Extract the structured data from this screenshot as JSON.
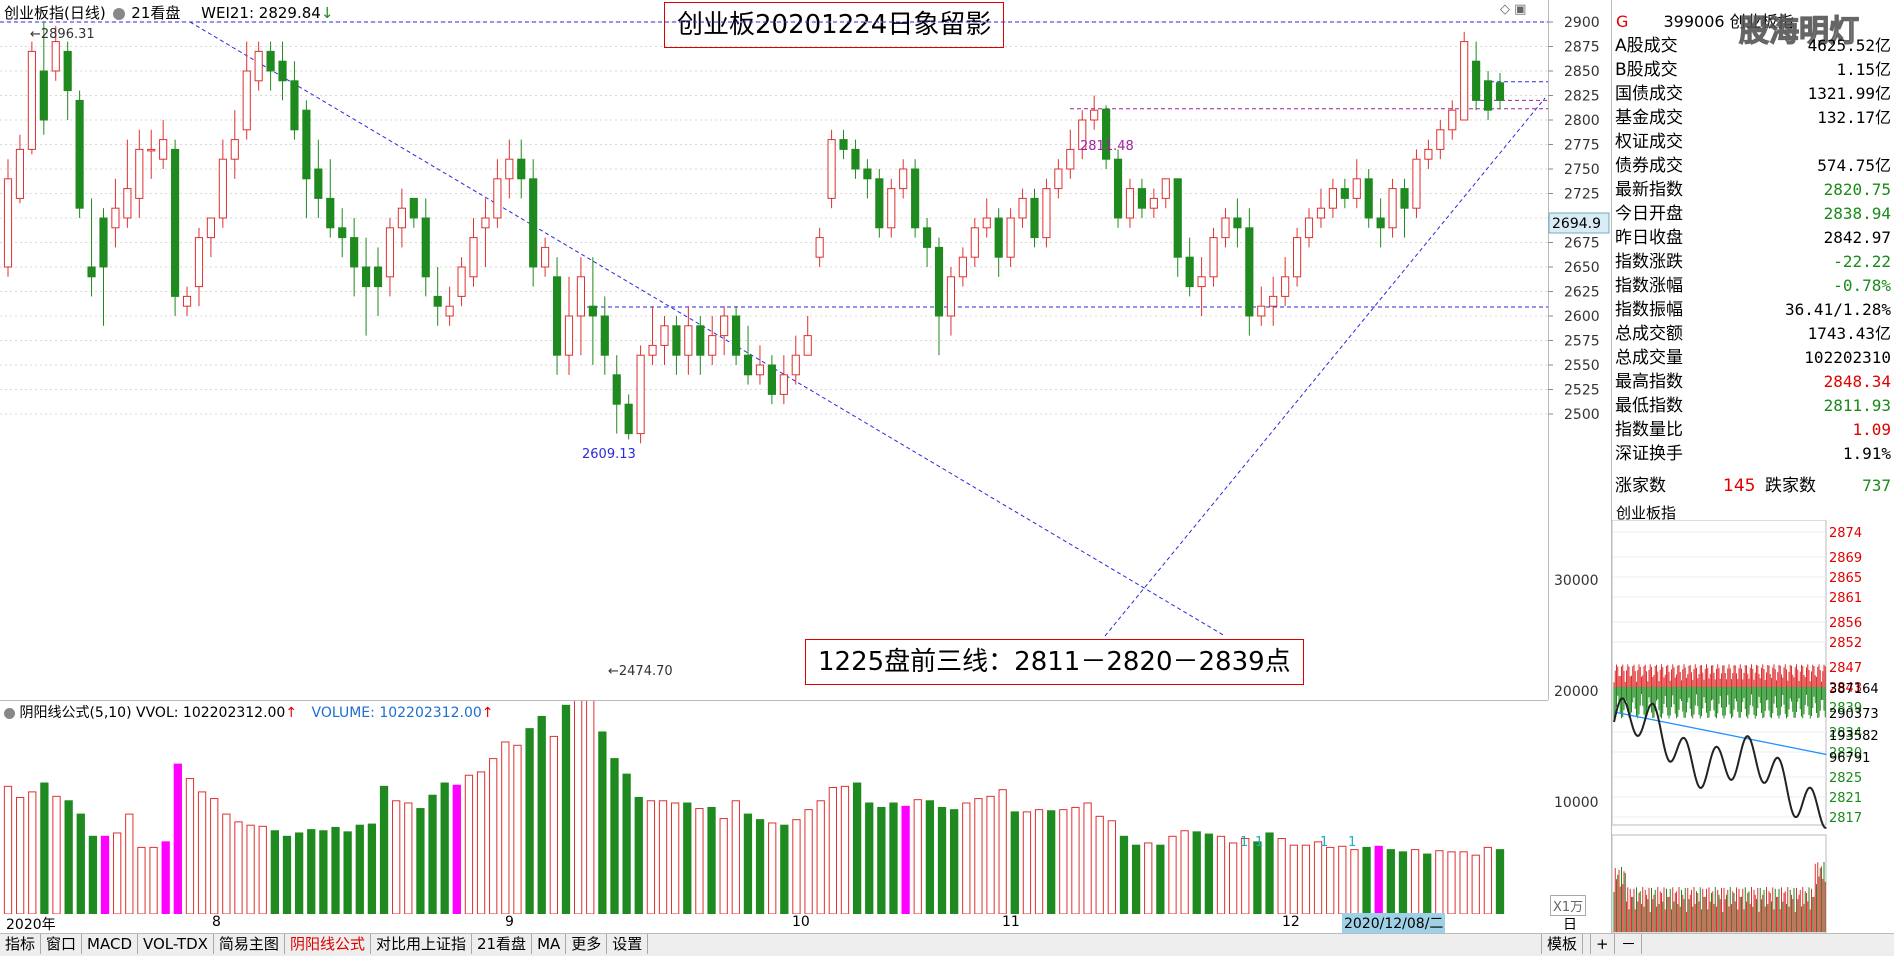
{
  "main_header": {
    "name": "创业板指(日线)",
    "period": "21看盘",
    "indicator": "WEI21: 2829.84",
    "indicator_arrow": "↓"
  },
  "title_box": "创业板20201224日象留影",
  "note_box": "1225盘前三线：2811－2820－2839点",
  "labels": {
    "high": "2896.31",
    "low": "2474.70",
    "level1": "2609.13",
    "level2": "2811.48",
    "current": "2694.9"
  },
  "vol_header": {
    "name": "阴阳线公式(5,10)",
    "vvol": "VVOL: 102202312.00",
    "volume": "VOLUME: 102202312.00",
    "arrow": "↑"
  },
  "vol_unit": "X1万",
  "date_axis": [
    "2020年",
    "8",
    "9",
    "10",
    "11",
    "12"
  ],
  "date_cursor": "2020/12/08/二",
  "date_right": "日线",
  "tabs": [
    "指标",
    "窗口",
    "MACD",
    "VOL-TDX",
    "简易主图",
    "阴阳线公式",
    "对比用上证指",
    "21看盘",
    "MA",
    "更多",
    "设置"
  ],
  "tab_right": "模板",
  "tab_plus": "+",
  "tab_minus": "－",
  "price_axis": [
    "2900",
    "2875",
    "2850",
    "2825",
    "2800",
    "2775",
    "2750",
    "2725",
    "2700",
    "2675",
    "2650",
    "2625",
    "2600",
    "2575",
    "2550",
    "2525",
    "2500"
  ],
  "vol_axis": [
    "30000",
    "20000",
    "10000"
  ],
  "cycle_marks": [
    "1",
    "1",
    "1",
    "1"
  ],
  "quote": {
    "flag": "G",
    "code": "399006",
    "name": "创业板指",
    "watermark": "股海明灯",
    "rows": [
      {
        "label": "A股成交",
        "value": "4625.52亿",
        "color": "#000000"
      },
      {
        "label": "B股成交",
        "value": "1.15亿",
        "color": "#000000"
      },
      {
        "label": "国债成交",
        "value": "1321.99亿",
        "color": "#000000"
      },
      {
        "label": "基金成交",
        "value": "132.17亿",
        "color": "#000000"
      },
      {
        "label": "权证成交",
        "value": "",
        "color": "#000000"
      },
      {
        "label": "债券成交",
        "value": "574.75亿",
        "color": "#000000"
      },
      {
        "label": "最新指数",
        "value": "2820.75",
        "color": "#1a8a1a"
      },
      {
        "label": "今日开盘",
        "value": "2838.94",
        "color": "#1a8a1a"
      },
      {
        "label": "昨日收盘",
        "value": "2842.97",
        "color": "#000000"
      },
      {
        "label": "指数涨跌",
        "value": "-22.22",
        "color": "#1a8a1a"
      },
      {
        "label": "指数涨幅",
        "value": "-0.78%",
        "color": "#1a8a1a"
      },
      {
        "label": "指数振幅",
        "value": "36.41/1.28%",
        "color": "#000000"
      },
      {
        "label": "总成交额",
        "value": "1743.43亿",
        "color": "#000000"
      },
      {
        "label": "总成交量",
        "value": "102202310",
        "color": "#000000"
      },
      {
        "label": "最高指数",
        "value": "2848.34",
        "color": "#e00000"
      },
      {
        "label": "最低指数",
        "value": "2811.93",
        "color": "#1a8a1a"
      },
      {
        "label": "指数量比",
        "value": "1.09",
        "color": "#e00000"
      },
      {
        "label": "深证换手",
        "value": "1.91%",
        "color": "#000000"
      }
    ],
    "up_label": "涨家数",
    "up_value": "145",
    "down_label": "跌家数",
    "down_value": "737"
  },
  "mini": {
    "title": "创业板指",
    "price_axis": [
      "2874",
      "2869",
      "2865",
      "2861",
      "2856",
      "2852",
      "2847",
      "2843",
      "2839",
      "2834",
      "2830",
      "2825",
      "2821",
      "2817"
    ],
    "vol_top": "387164",
    "vol_axis": [
      "290373",
      "193582",
      "96791"
    ]
  },
  "chart_data": {
    "type": "candlestick",
    "title": "创业板20201224日象留影",
    "ylim": [
      2460,
      2910
    ],
    "y_ticks": [
      2500,
      2525,
      2550,
      2575,
      2600,
      2625,
      2650,
      2675,
      2700,
      2725,
      2750,
      2775,
      2800,
      2825,
      2850,
      2875,
      2900
    ],
    "candles": [
      [
        2650,
        2740,
        2760,
        2640
      ],
      [
        2720,
        2770,
        2785,
        2715
      ],
      [
        2770,
        2870,
        2880,
        2765
      ],
      [
        2850,
        2800,
        2900,
        2785
      ],
      [
        2850,
        2880,
        2896,
        2840
      ],
      [
        2870,
        2830,
        2880,
        2800
      ],
      [
        2820,
        2710,
        2830,
        2700
      ],
      [
        2650,
        2640,
        2720,
        2620
      ],
      [
        2700,
        2650,
        2710,
        2590
      ],
      [
        2690,
        2710,
        2740,
        2670
      ],
      [
        2700,
        2730,
        2780,
        2690
      ],
      [
        2720,
        2770,
        2790,
        2700
      ],
      [
        2770,
        2770,
        2790,
        2740
      ],
      [
        2760,
        2780,
        2800,
        2750
      ],
      [
        2770,
        2620,
        2780,
        2600
      ],
      [
        2610,
        2620,
        2630,
        2600
      ],
      [
        2630,
        2680,
        2690,
        2610
      ],
      [
        2680,
        2700,
        2700,
        2660
      ],
      [
        2700,
        2760,
        2780,
        2690
      ],
      [
        2760,
        2780,
        2810,
        2740
      ],
      [
        2790,
        2850,
        2880,
        2780
      ],
      [
        2840,
        2870,
        2880,
        2830
      ],
      [
        2870,
        2850,
        2880,
        2830
      ],
      [
        2860,
        2840,
        2880,
        2820
      ],
      [
        2840,
        2790,
        2860,
        2780
      ],
      [
        2810,
        2740,
        2820,
        2700
      ],
      [
        2750,
        2720,
        2780,
        2700
      ],
      [
        2720,
        2690,
        2760,
        2680
      ],
      [
        2690,
        2680,
        2710,
        2660
      ],
      [
        2680,
        2650,
        2700,
        2620
      ],
      [
        2650,
        2630,
        2680,
        2580
      ],
      [
        2650,
        2630,
        2670,
        2600
      ],
      [
        2640,
        2690,
        2700,
        2620
      ],
      [
        2690,
        2710,
        2730,
        2670
      ],
      [
        2720,
        2700,
        2720,
        2690
      ],
      [
        2700,
        2640,
        2720,
        2620
      ],
      [
        2620,
        2610,
        2650,
        2590
      ],
      [
        2600,
        2610,
        2630,
        2590
      ],
      [
        2620,
        2650,
        2660,
        2610
      ],
      [
        2640,
        2680,
        2700,
        2630
      ],
      [
        2690,
        2700,
        2720,
        2650
      ],
      [
        2700,
        2740,
        2760,
        2690
      ],
      [
        2740,
        2760,
        2780,
        2720
      ],
      [
        2760,
        2740,
        2780,
        2720
      ],
      [
        2740,
        2650,
        2760,
        2630
      ],
      [
        2650,
        2670,
        2680,
        2640
      ],
      [
        2640,
        2560,
        2660,
        2540
      ],
      [
        2560,
        2600,
        2640,
        2540
      ],
      [
        2600,
        2640,
        2660,
        2560
      ],
      [
        2610,
        2600,
        2660,
        2550
      ],
      [
        2600,
        2560,
        2620,
        2540
      ],
      [
        2540,
        2510,
        2560,
        2480
      ],
      [
        2510,
        2480,
        2520,
        2474
      ],
      [
        2480,
        2560,
        2570,
        2470
      ],
      [
        2560,
        2570,
        2610,
        2550
      ],
      [
        2570,
        2590,
        2600,
        2550
      ],
      [
        2590,
        2560,
        2600,
        2540
      ],
      [
        2560,
        2590,
        2610,
        2540
      ],
      [
        2590,
        2560,
        2600,
        2540
      ],
      [
        2560,
        2580,
        2600,
        2550
      ],
      [
        2580,
        2600,
        2610,
        2560
      ],
      [
        2600,
        2560,
        2610,
        2550
      ],
      [
        2560,
        2540,
        2590,
        2530
      ],
      [
        2540,
        2550,
        2570,
        2530
      ],
      [
        2550,
        2520,
        2560,
        2510
      ],
      [
        2520,
        2540,
        2560,
        2510
      ],
      [
        2540,
        2560,
        2580,
        2530
      ],
      [
        2560,
        2580,
        2600,
        2560
      ],
      [
        2660,
        2680,
        2690,
        2650
      ],
      [
        2720,
        2780,
        2790,
        2710
      ],
      [
        2780,
        2770,
        2790,
        2760
      ],
      [
        2770,
        2750,
        2780,
        2740
      ],
      [
        2750,
        2740,
        2760,
        2720
      ],
      [
        2740,
        2690,
        2750,
        2680
      ],
      [
        2690,
        2730,
        2740,
        2680
      ],
      [
        2730,
        2750,
        2760,
        2720
      ],
      [
        2750,
        2690,
        2760,
        2680
      ],
      [
        2690,
        2670,
        2700,
        2650
      ],
      [
        2670,
        2600,
        2680,
        2560
      ],
      [
        2600,
        2640,
        2650,
        2580
      ],
      [
        2640,
        2660,
        2670,
        2630
      ],
      [
        2660,
        2690,
        2700,
        2650
      ],
      [
        2690,
        2700,
        2720,
        2680
      ],
      [
        2700,
        2660,
        2710,
        2640
      ],
      [
        2660,
        2700,
        2710,
        2650
      ],
      [
        2700,
        2720,
        2730,
        2690
      ],
      [
        2720,
        2680,
        2730,
        2670
      ],
      [
        2680,
        2730,
        2740,
        2670
      ],
      [
        2730,
        2750,
        2760,
        2720
      ],
      [
        2750,
        2770,
        2790,
        2740
      ],
      [
        2770,
        2800,
        2810,
        2760
      ],
      [
        2800,
        2810,
        2825,
        2790
      ],
      [
        2811,
        2760,
        2815,
        2750
      ],
      [
        2760,
        2700,
        2770,
        2690
      ],
      [
        2700,
        2730,
        2740,
        2690
      ],
      [
        2730,
        2710,
        2740,
        2700
      ],
      [
        2710,
        2720,
        2730,
        2700
      ],
      [
        2720,
        2740,
        2740,
        2710
      ],
      [
        2740,
        2660,
        2740,
        2640
      ],
      [
        2660,
        2630,
        2680,
        2620
      ],
      [
        2630,
        2640,
        2660,
        2600
      ],
      [
        2640,
        2680,
        2690,
        2630
      ],
      [
        2680,
        2700,
        2710,
        2670
      ],
      [
        2700,
        2690,
        2720,
        2670
      ],
      [
        2690,
        2600,
        2710,
        2580
      ],
      [
        2600,
        2610,
        2630,
        2590
      ],
      [
        2610,
        2620,
        2640,
        2590
      ],
      [
        2620,
        2640,
        2660,
        2610
      ],
      [
        2640,
        2680,
        2690,
        2630
      ],
      [
        2680,
        2700,
        2710,
        2670
      ],
      [
        2700,
        2710,
        2730,
        2690
      ],
      [
        2710,
        2730,
        2740,
        2700
      ],
      [
        2730,
        2720,
        2740,
        2710
      ],
      [
        2720,
        2740,
        2760,
        2710
      ],
      [
        2740,
        2700,
        2750,
        2690
      ],
      [
        2700,
        2690,
        2720,
        2670
      ],
      [
        2690,
        2730,
        2740,
        2680
      ],
      [
        2730,
        2710,
        2740,
        2680
      ],
      [
        2710,
        2760,
        2770,
        2700
      ],
      [
        2760,
        2770,
        2780,
        2750
      ],
      [
        2770,
        2790,
        2800,
        2760
      ],
      [
        2790,
        2810,
        2820,
        2780
      ],
      [
        2800,
        2880,
        2890,
        2800
      ],
      [
        2860,
        2820,
        2880,
        2810
      ],
      [
        2840,
        2810,
        2850,
        2800
      ],
      [
        2838,
        2820,
        2848,
        2811
      ]
    ],
    "level_lines": [
      2609.13,
      2811.48
    ],
    "volume_unit": "X1万"
  }
}
